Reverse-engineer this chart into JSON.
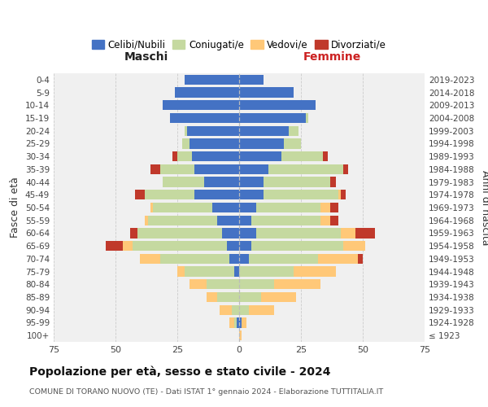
{
  "age_groups": [
    "100+",
    "95-99",
    "90-94",
    "85-89",
    "80-84",
    "75-79",
    "70-74",
    "65-69",
    "60-64",
    "55-59",
    "50-54",
    "45-49",
    "40-44",
    "35-39",
    "30-34",
    "25-29",
    "20-24",
    "15-19",
    "10-14",
    "5-9",
    "0-4"
  ],
  "birth_years": [
    "≤ 1923",
    "1924-1928",
    "1929-1933",
    "1934-1938",
    "1939-1943",
    "1944-1948",
    "1949-1953",
    "1954-1958",
    "1959-1963",
    "1964-1968",
    "1969-1973",
    "1974-1978",
    "1979-1983",
    "1984-1988",
    "1989-1993",
    "1994-1998",
    "1999-2003",
    "2004-2008",
    "2009-2013",
    "2014-2018",
    "2019-2023"
  ],
  "colors": {
    "celibi": "#4472c4",
    "coniugati": "#c5d9a0",
    "vedovi": "#ffc878",
    "divorziati": "#c0392b"
  },
  "males": {
    "celibi": [
      0,
      1,
      0,
      0,
      0,
      2,
      4,
      5,
      7,
      9,
      11,
      18,
      14,
      18,
      19,
      20,
      21,
      28,
      31,
      26,
      22
    ],
    "coniugati": [
      0,
      1,
      3,
      9,
      13,
      20,
      28,
      38,
      34,
      28,
      24,
      20,
      17,
      14,
      6,
      3,
      1,
      0,
      0,
      0,
      0
    ],
    "vedovi": [
      0,
      2,
      5,
      4,
      7,
      3,
      8,
      4,
      0,
      1,
      1,
      0,
      0,
      0,
      0,
      0,
      0,
      0,
      0,
      0,
      0
    ],
    "divorziati": [
      0,
      0,
      0,
      0,
      0,
      0,
      0,
      7,
      3,
      0,
      0,
      4,
      0,
      4,
      2,
      0,
      0,
      0,
      0,
      0,
      0
    ]
  },
  "females": {
    "celibi": [
      0,
      1,
      0,
      0,
      0,
      0,
      4,
      5,
      7,
      5,
      7,
      10,
      10,
      12,
      17,
      18,
      20,
      27,
      31,
      22,
      10
    ],
    "coniugati": [
      0,
      0,
      4,
      9,
      14,
      22,
      28,
      37,
      34,
      28,
      26,
      30,
      27,
      30,
      17,
      7,
      4,
      1,
      0,
      0,
      0
    ],
    "vedovi": [
      1,
      2,
      10,
      14,
      19,
      17,
      16,
      9,
      6,
      4,
      4,
      1,
      0,
      0,
      0,
      0,
      0,
      0,
      0,
      0,
      0
    ],
    "divorziati": [
      0,
      0,
      0,
      0,
      0,
      0,
      2,
      0,
      8,
      3,
      3,
      2,
      2,
      2,
      2,
      0,
      0,
      0,
      0,
      0,
      0
    ]
  },
  "title": "Popolazione per età, sesso e stato civile - 2024",
  "subtitle": "COMUNE DI TORANO NUOVO (TE) - Dati ISTAT 1° gennaio 2024 - Elaborazione TUTTITALIA.IT",
  "xlabel_left": "Maschi",
  "xlabel_right": "Femmine",
  "ylabel_left": "Fasce di età",
  "ylabel_right": "Anni di nascita",
  "legend_labels": [
    "Celibi/Nubili",
    "Coniugati/e",
    "Vedovi/e",
    "Divorziati/e"
  ],
  "xlim": 75,
  "bg_color": "#ffffff",
  "grid_color": "#cccccc",
  "ax_bg": "#f0f0f0"
}
